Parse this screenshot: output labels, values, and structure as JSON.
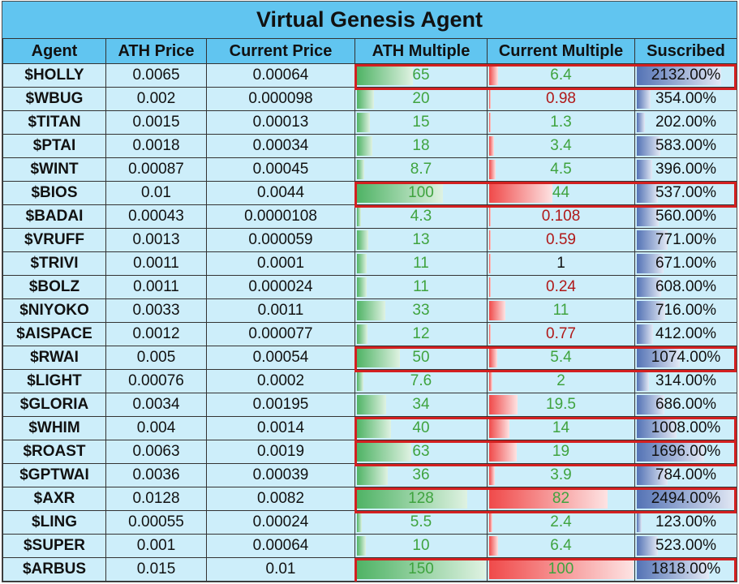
{
  "title": "Virtual Genesis Agent",
  "headers": [
    "Agent",
    "ATH Price",
    "Current Price",
    "ATH Multiple",
    "Current Multiple",
    "Suscribed"
  ],
  "colors": {
    "header_bg": "#61c5f0",
    "cell_bg": "#cdeefa",
    "green_bar": "#4fb365",
    "red_bar": "#f04a4a",
    "blue_bar": "#5473b5",
    "highlight": "#d32020"
  },
  "chart_data": {
    "type": "table",
    "title": "Virtual Genesis Agent",
    "columns": [
      "Agent",
      "ATH Price",
      "Current Price",
      "ATH Multiple",
      "Current Multiple",
      "Suscribed"
    ],
    "rows": [
      {
        "agent": "$HOLLY",
        "ath_price": "0.0065",
        "current_price": "0.00064",
        "ath_multiple": "65",
        "current_multiple": "6.4",
        "current_multiple_color": "green",
        "subscribed": "2132.00%",
        "subscribed_value": 2132,
        "highlighted": true
      },
      {
        "agent": "$WBUG",
        "ath_price": "0.002",
        "current_price": "0.000098",
        "ath_multiple": "20",
        "current_multiple": "0.98",
        "current_multiple_color": "red",
        "subscribed": "354.00%",
        "subscribed_value": 354,
        "highlighted": false
      },
      {
        "agent": "$TITAN",
        "ath_price": "0.0015",
        "current_price": "0.00013",
        "ath_multiple": "15",
        "current_multiple": "1.3",
        "current_multiple_color": "green",
        "subscribed": "202.00%",
        "subscribed_value": 202,
        "highlighted": false
      },
      {
        "agent": "$PTAI",
        "ath_price": "0.0018",
        "current_price": "0.00034",
        "ath_multiple": "18",
        "current_multiple": "3.4",
        "current_multiple_color": "green",
        "subscribed": "583.00%",
        "subscribed_value": 583,
        "highlighted": false
      },
      {
        "agent": "$WINT",
        "ath_price": "0.00087",
        "current_price": "0.00045",
        "ath_multiple": "8.7",
        "current_multiple": "4.5",
        "current_multiple_color": "green",
        "subscribed": "396.00%",
        "subscribed_value": 396,
        "highlighted": false
      },
      {
        "agent": "$BIOS",
        "ath_price": "0.01",
        "current_price": "0.0044",
        "ath_multiple": "100",
        "current_multiple": "44",
        "current_multiple_color": "green",
        "subscribed": "537.00%",
        "subscribed_value": 537,
        "highlighted": true
      },
      {
        "agent": "$BADAI",
        "ath_price": "0.00043",
        "current_price": "0.0000108",
        "ath_multiple": "4.3",
        "current_multiple": "0.108",
        "current_multiple_color": "red",
        "subscribed": "560.00%",
        "subscribed_value": 560,
        "highlighted": false
      },
      {
        "agent": "$VRUFF",
        "ath_price": "0.0013",
        "current_price": "0.000059",
        "ath_multiple": "13",
        "current_multiple": "0.59",
        "current_multiple_color": "red",
        "subscribed": "771.00%",
        "subscribed_value": 771,
        "highlighted": false
      },
      {
        "agent": "$TRIVI",
        "ath_price": "0.0011",
        "current_price": "0.0001",
        "ath_multiple": "11",
        "current_multiple": "1",
        "current_multiple_color": "black",
        "subscribed": "671.00%",
        "subscribed_value": 671,
        "highlighted": false
      },
      {
        "agent": "$BOLZ",
        "ath_price": "0.0011",
        "current_price": "0.000024",
        "ath_multiple": "11",
        "current_multiple": "0.24",
        "current_multiple_color": "red",
        "subscribed": "608.00%",
        "subscribed_value": 608,
        "highlighted": false
      },
      {
        "agent": "$NIYOKO",
        "ath_price": "0.0033",
        "current_price": "0.0011",
        "ath_multiple": "33",
        "current_multiple": "11",
        "current_multiple_color": "green",
        "subscribed": "716.00%",
        "subscribed_value": 716,
        "highlighted": false
      },
      {
        "agent": "$AISPACE",
        "ath_price": "0.0012",
        "current_price": "0.000077",
        "ath_multiple": "12",
        "current_multiple": "0.77",
        "current_multiple_color": "red",
        "subscribed": "412.00%",
        "subscribed_value": 412,
        "highlighted": false
      },
      {
        "agent": "$RWAI",
        "ath_price": "0.005",
        "current_price": "0.00054",
        "ath_multiple": "50",
        "current_multiple": "5.4",
        "current_multiple_color": "green",
        "subscribed": "1074.00%",
        "subscribed_value": 1074,
        "highlighted": true
      },
      {
        "agent": "$LIGHT",
        "ath_price": "0.00076",
        "current_price": "0.0002",
        "ath_multiple": "7.6",
        "current_multiple": "2",
        "current_multiple_color": "green",
        "subscribed": "314.00%",
        "subscribed_value": 314,
        "highlighted": false
      },
      {
        "agent": "$GLORIA",
        "ath_price": "0.0034",
        "current_price": "0.00195",
        "ath_multiple": "34",
        "current_multiple": "19.5",
        "current_multiple_color": "green",
        "subscribed": "686.00%",
        "subscribed_value": 686,
        "highlighted": false
      },
      {
        "agent": "$WHIM",
        "ath_price": "0.004",
        "current_price": "0.0014",
        "ath_multiple": "40",
        "current_multiple": "14",
        "current_multiple_color": "green",
        "subscribed": "1008.00%",
        "subscribed_value": 1008,
        "highlighted": true
      },
      {
        "agent": "$ROAST",
        "ath_price": "0.0063",
        "current_price": "0.0019",
        "ath_multiple": "63",
        "current_multiple": "19",
        "current_multiple_color": "green",
        "subscribed": "1696.00%",
        "subscribed_value": 1696,
        "highlighted": true
      },
      {
        "agent": "$GPTWAI",
        "ath_price": "0.0036",
        "current_price": "0.00039",
        "ath_multiple": "36",
        "current_multiple": "3.9",
        "current_multiple_color": "green",
        "subscribed": "784.00%",
        "subscribed_value": 784,
        "highlighted": false
      },
      {
        "agent": "$AXR",
        "ath_price": "0.0128",
        "current_price": "0.0082",
        "ath_multiple": "128",
        "current_multiple": "82",
        "current_multiple_color": "green",
        "subscribed": "2494.00%",
        "subscribed_value": 2494,
        "highlighted": true
      },
      {
        "agent": "$LING",
        "ath_price": "0.00055",
        "current_price": "0.00024",
        "ath_multiple": "5.5",
        "current_multiple": "2.4",
        "current_multiple_color": "green",
        "subscribed": "123.00%",
        "subscribed_value": 123,
        "highlighted": false
      },
      {
        "agent": "$SUPER",
        "ath_price": "0.001",
        "current_price": "0.00064",
        "ath_multiple": "10",
        "current_multiple": "6.4",
        "current_multiple_color": "green",
        "subscribed": "523.00%",
        "subscribed_value": 523,
        "highlighted": false
      },
      {
        "agent": "$ARBUS",
        "ath_price": "0.015",
        "current_price": "0.01",
        "ath_multiple": "150",
        "current_multiple": "100",
        "current_multiple_color": "green",
        "subscribed": "1818.00%",
        "subscribed_value": 1818,
        "highlighted": true
      }
    ]
  }
}
